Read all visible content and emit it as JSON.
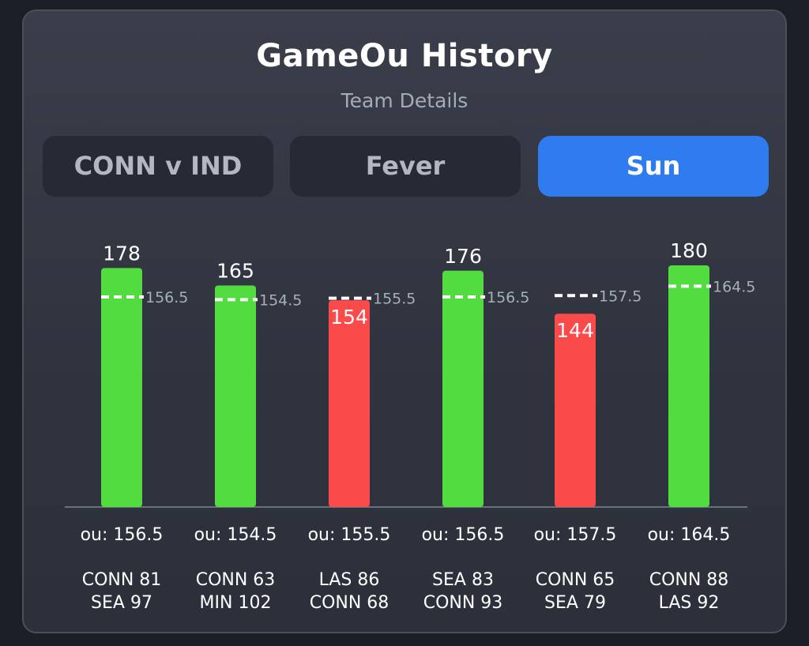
{
  "header": {
    "title": "GameOu History",
    "subtitle": "Team Details"
  },
  "tabs": [
    {
      "label": "CONN v IND",
      "active": false
    },
    {
      "label": "Fever",
      "active": false
    },
    {
      "label": "Sun",
      "active": true
    }
  ],
  "colors": {
    "over": "#53dc40",
    "under": "#fb4a4a",
    "active_tab": "#2f7cf0"
  },
  "chart_data": {
    "type": "bar",
    "ylim": [
      0,
      200
    ],
    "categories": [
      "CONN 81 SEA 97",
      "CONN 63 MIN 102",
      "LAS 86 CONN 68",
      "SEA 83 CONN 93",
      "CONN 65 SEA 79",
      "CONN 88 LAS 92"
    ],
    "values": [
      178,
      165,
      154,
      176,
      144,
      180
    ],
    "lines": [
      156.5,
      154.5,
      155.5,
      156.5,
      157.5,
      164.5
    ],
    "ou_labels": [
      "ou: 156.5",
      "ou: 154.5",
      "ou: 155.5",
      "ou: 156.5",
      "ou: 157.5",
      "ou: 164.5"
    ],
    "matchups": [
      [
        "CONN 81",
        "SEA 97"
      ],
      [
        "CONN 63",
        "MIN 102"
      ],
      [
        "LAS 86",
        "CONN 68"
      ],
      [
        "SEA 83",
        "CONN 93"
      ],
      [
        "CONN 65",
        "SEA 79"
      ],
      [
        "CONN 88",
        "LAS 92"
      ]
    ],
    "results": [
      "over",
      "over",
      "under",
      "over",
      "under",
      "over"
    ]
  }
}
